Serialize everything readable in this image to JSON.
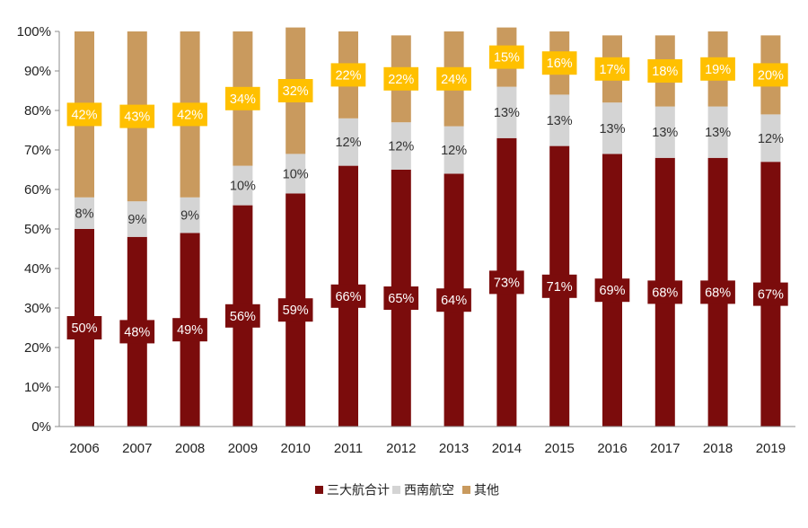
{
  "chart_data": {
    "type": "bar",
    "stacked": true,
    "title": "",
    "xlabel": "",
    "ylabel": "",
    "ylim": [
      0,
      100
    ],
    "y_ticks": [
      "0%",
      "10%",
      "20%",
      "30%",
      "40%",
      "50%",
      "60%",
      "70%",
      "80%",
      "90%",
      "100%"
    ],
    "grid": false,
    "legend_position": "bottom",
    "categories": [
      "2006",
      "2007",
      "2008",
      "2009",
      "2010",
      "2011",
      "2012",
      "2013",
      "2014",
      "2015",
      "2016",
      "2017",
      "2018",
      "2019"
    ],
    "series": [
      {
        "name": "三大航合计",
        "color": "#7b0c0c",
        "label_bg": "#7b0c0c",
        "label_color": "#ffffff",
        "values": [
          50,
          48,
          49,
          56,
          59,
          66,
          65,
          64,
          73,
          71,
          69,
          68,
          68,
          67
        ],
        "labels": [
          "50%",
          "48%",
          "49%",
          "56%",
          "59%",
          "66%",
          "65%",
          "64%",
          "73%",
          "71%",
          "69%",
          "68%",
          "68%",
          "67%"
        ]
      },
      {
        "name": "西南航空",
        "color": "#d4d4d4",
        "label_bg": "",
        "label_color": "#333333",
        "values": [
          8,
          9,
          9,
          10,
          10,
          12,
          12,
          12,
          13,
          13,
          13,
          13,
          13,
          12
        ],
        "labels": [
          "8%",
          "9%",
          "9%",
          "10%",
          "10%",
          "12%",
          "12%",
          "12%",
          "13%",
          "13%",
          "13%",
          "13%",
          "13%",
          "12%"
        ]
      },
      {
        "name": "其他",
        "color": "#c99a5e",
        "label_bg": "#ffc000",
        "label_color": "#ffffff",
        "values": [
          42,
          43,
          42,
          34,
          32,
          22,
          22,
          24,
          15,
          16,
          17,
          18,
          19,
          20
        ],
        "labels": [
          "42%",
          "43%",
          "42%",
          "34%",
          "32%",
          "22%",
          "22%",
          "24%",
          "15%",
          "16%",
          "17%",
          "18%",
          "19%",
          "20%"
        ]
      }
    ]
  }
}
